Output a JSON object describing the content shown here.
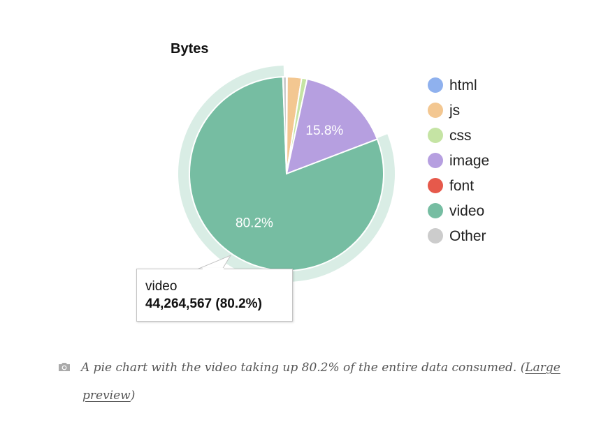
{
  "chart_data": {
    "type": "pie",
    "title": "Bytes",
    "slices": [
      {
        "name": "html",
        "value": 0.1,
        "color": "#8fb1ee",
        "label": ""
      },
      {
        "name": "js",
        "value": 2.4,
        "color": "#f3c791",
        "label": ""
      },
      {
        "name": "css",
        "value": 0.9,
        "color": "#c5e4a4",
        "label": ""
      },
      {
        "name": "image",
        "value": 15.8,
        "color": "#b69fe0",
        "label": "15.8%"
      },
      {
        "name": "font",
        "value": 0.0,
        "color": "#e6594b",
        "label": ""
      },
      {
        "name": "video",
        "value": 80.2,
        "color": "#76bda2",
        "label": "80.2%"
      },
      {
        "name": "Other",
        "value": 0.6,
        "color": "#cccccc",
        "label": ""
      }
    ],
    "highlighted": "video",
    "legend_position": "right",
    "tooltip": {
      "name": "video",
      "value": "44,264,567 (80.2%)"
    }
  },
  "caption": {
    "text": "A pie chart with the video taking up 80.2% of the entire data consumed. (",
    "link_line1": "Large",
    "link_line2": "preview",
    "close": ")",
    "icon": "camera-icon"
  }
}
